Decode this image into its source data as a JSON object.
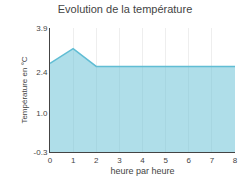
{
  "chart_data": {
    "type": "area",
    "title": "Evolution de la température",
    "xlabel": "heure par heure",
    "ylabel": "Température en °C",
    "x": [
      0,
      1,
      2,
      3,
      4,
      5,
      6,
      7,
      8
    ],
    "values": [
      2.7,
      3.2,
      2.6,
      2.6,
      2.6,
      2.6,
      2.6,
      2.6,
      2.6
    ],
    "color": "#60bdd4",
    "xlim": [
      0,
      8
    ],
    "ylim": [
      -0.3,
      3.9
    ],
    "xticks": [
      0,
      1,
      2,
      3,
      4,
      5,
      6,
      7,
      8
    ],
    "yticks": [
      -0.3,
      {
        "value": 1,
        "label": "1.0"
      },
      2.4,
      3.9
    ],
    "grid": "x"
  }
}
